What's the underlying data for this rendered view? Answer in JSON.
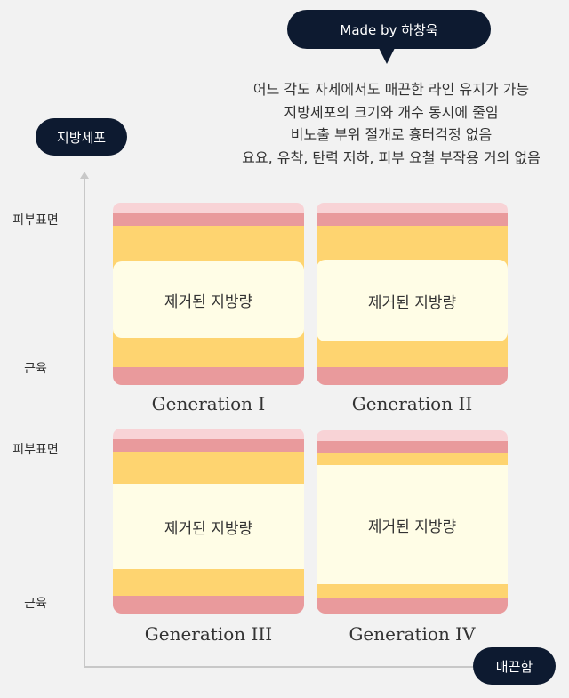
{
  "credit": "Made by 하창욱",
  "description": [
    "어느 각도 자세에서도 매끈한 라인 유지가 가능",
    "지방세포의 크기와 개수 동시에 줄임",
    "비노출 부위 절개로 흉터걱정 없음",
    "요요, 유착, 탄력 저하, 피부 요철 부작용 거의 없음"
  ],
  "axis": {
    "y_title": "지방세포",
    "x_title": "매끈함"
  },
  "layer_labels": {
    "top": "피부표면",
    "bottom": "근육"
  },
  "removed_label": "제거된 지방량",
  "generations": [
    "Generation I",
    "Generation II",
    "Generation III",
    "Generation IV"
  ],
  "colors": {
    "pill": "#0d1a30",
    "skin": "#f8d3d6",
    "dermis": "#e99a9c",
    "fat": "#fed470",
    "removed": "#fffde6"
  }
}
